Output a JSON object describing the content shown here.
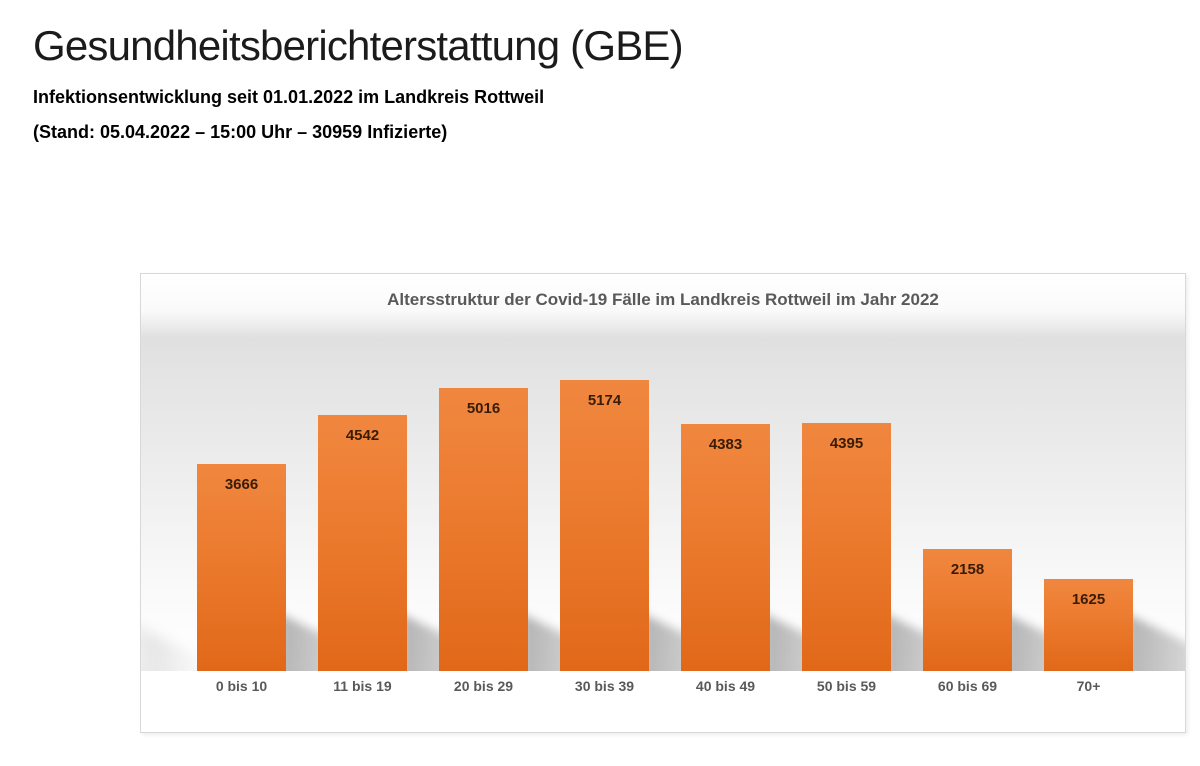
{
  "header": {
    "title": "Gesundheitsberichterstattung (GBE)",
    "subtitle": "Infektionsentwicklung seit 01.01.2022 im Landkreis Rottweil",
    "status_line": "(Stand: 05.04.2022 – 15:00 Uhr – 30959 Infizierte)"
  },
  "chart": {
    "colors": {
      "bar": "#ED7D31",
      "bar_gradient_top": "#F0873F",
      "bar_gradient_bottom": "#E16819",
      "value_label": "#391C06",
      "axis_label": "#595959",
      "title_text": "#595959",
      "plot_background_gray": "#E2E2E2",
      "box_border": "#D8D8D8"
    }
  },
  "chart_data": {
    "type": "bar",
    "title": "Altersstruktur der Covid-19 Fälle im Landkreis Rottweil im Jahr 2022",
    "categories": [
      "0 bis 10",
      "11 bis 19",
      "20 bis 29",
      "30 bis 39",
      "40 bis 49",
      "50 bis 59",
      "60 bis 69",
      "70+"
    ],
    "values": [
      3666,
      4542,
      5016,
      5174,
      4383,
      4395,
      2158,
      1625
    ],
    "xlabel": "",
    "ylabel": "",
    "ylim": [
      0,
      6000
    ],
    "grid": false,
    "legend": false,
    "y_axis_visible": false,
    "data_labels": "inside-end"
  }
}
